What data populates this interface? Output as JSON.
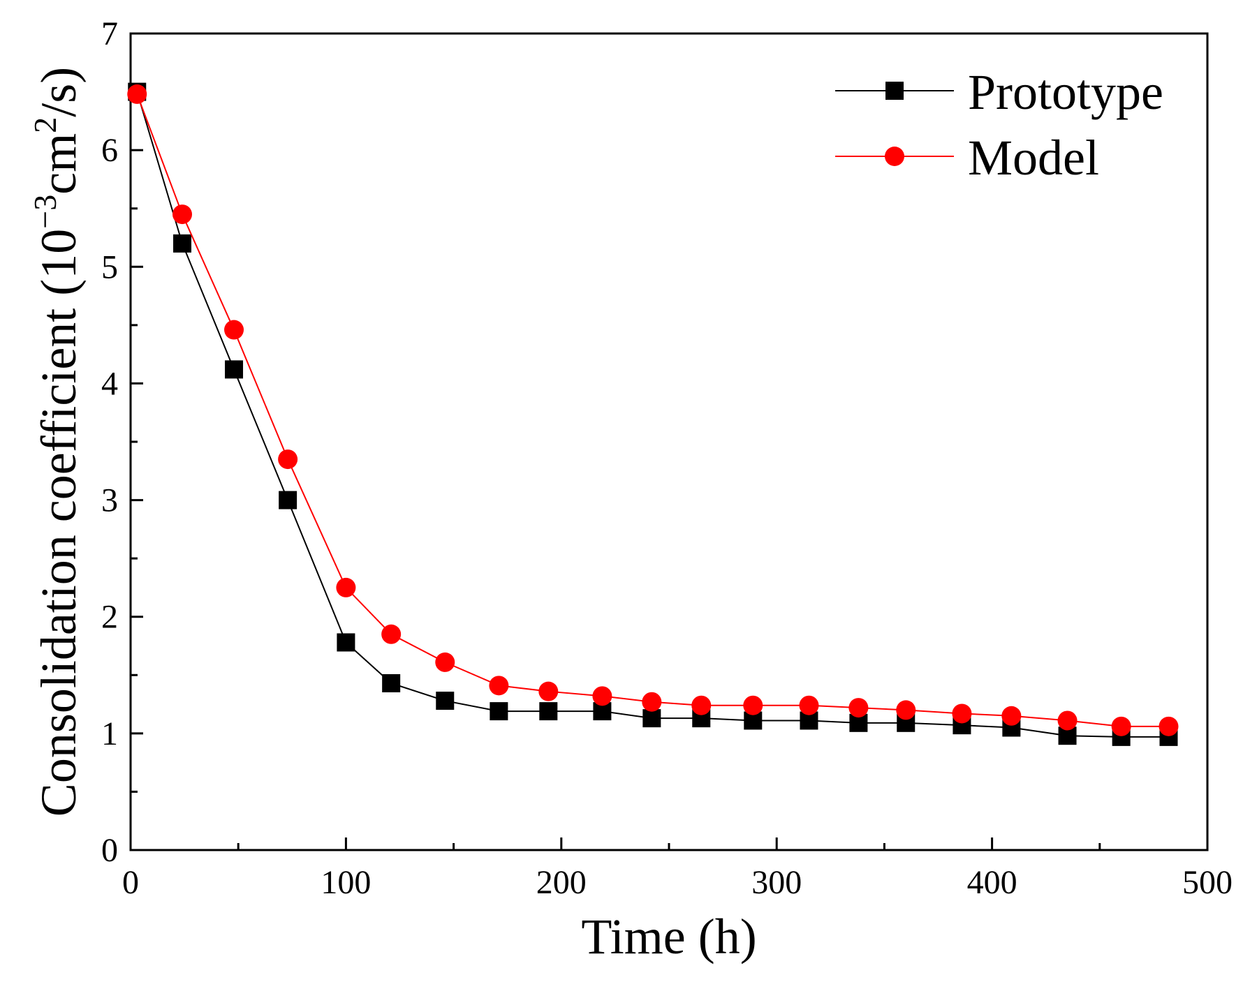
{
  "chart_data": {
    "type": "line",
    "title": "",
    "xlabel": "Time (h)",
    "ylabel": {
      "prefix": "Consolidation coefficient (10",
      "exp1": "−3",
      "mid": "cm",
      "exp2": "2",
      "suffix": "/s)"
    },
    "xlim": [
      0,
      500
    ],
    "ylim": [
      0,
      7
    ],
    "xticks": [
      "0",
      "100",
      "200",
      "300",
      "400",
      "500"
    ],
    "yticks": [
      "0",
      "1",
      "2",
      "3",
      "4",
      "5",
      "6",
      "7"
    ],
    "grid": false,
    "legend_position": "top-right",
    "colors": {
      "prototype": "#000000",
      "model": "#ff0000"
    },
    "series": [
      {
        "name": "Prototype",
        "marker": "square",
        "x": [
          3,
          24,
          48,
          73,
          100,
          121,
          146,
          171,
          194,
          219,
          242,
          265,
          289,
          315,
          338,
          360,
          386,
          409,
          435,
          460,
          482
        ],
        "values": [
          6.5,
          5.2,
          4.12,
          3.0,
          1.78,
          1.43,
          1.28,
          1.19,
          1.19,
          1.19,
          1.13,
          1.13,
          1.11,
          1.11,
          1.09,
          1.09,
          1.07,
          1.05,
          0.98,
          0.97,
          0.97
        ]
      },
      {
        "name": "Model",
        "marker": "circle",
        "x": [
          3,
          24,
          48,
          73,
          100,
          121,
          146,
          171,
          194,
          219,
          242,
          265,
          289,
          315,
          338,
          360,
          386,
          409,
          435,
          460,
          482
        ],
        "values": [
          6.48,
          5.45,
          4.46,
          3.35,
          2.25,
          1.85,
          1.61,
          1.41,
          1.36,
          1.32,
          1.27,
          1.24,
          1.24,
          1.24,
          1.22,
          1.2,
          1.17,
          1.15,
          1.11,
          1.06,
          1.06
        ]
      }
    ]
  }
}
